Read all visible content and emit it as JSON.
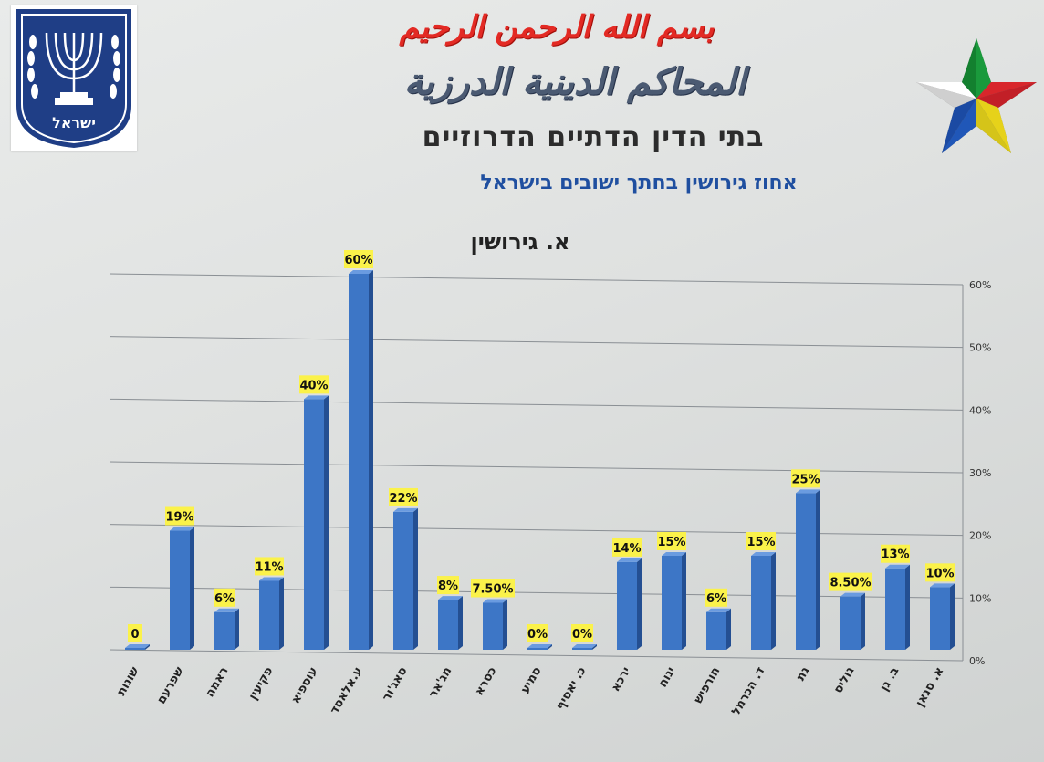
{
  "header": {
    "basmala": "بسم الله الرحمن الرحيم",
    "arabic_courts": "المحاكم الدينية الدرزية",
    "hebrew_courts": "בתי הדין הדתיים הדרוזיים",
    "subtitle": "אחוז גירושין בחתך ישובים בישראל",
    "emblem_text": "ישראל"
  },
  "chart_data": {
    "type": "bar",
    "title": "א. גירושין",
    "xlabel": "",
    "ylabel": "",
    "ylim": [
      0,
      60
    ],
    "yticks": [
      "0%",
      "10%",
      "20%",
      "30%",
      "40%",
      "50%",
      "60%"
    ],
    "categories": [
      "שונות",
      "שפרעם",
      "ראמה",
      "פקיעין",
      "עוספיא",
      "ע.אלאסד",
      "סאג'ור",
      "מג'אר",
      "כסרא",
      "סמיע",
      "כ. יאסיף",
      "ירכא",
      "ינוח",
      "חורפיש",
      "ד. הכרמל",
      "גת",
      "גוליס",
      "ב. גן",
      "א. סנאן"
    ],
    "values": [
      0,
      19,
      6,
      11,
      40,
      60,
      22,
      8,
      7.5,
      0,
      0,
      14,
      15,
      6,
      15,
      25,
      8.5,
      13,
      10
    ],
    "data_labels": [
      "0",
      "19%",
      "6%",
      "11%",
      "40%",
      "60%",
      "22%",
      "8%",
      "7.50%",
      "0%",
      "0%",
      "14%",
      "15%",
      "6%",
      "15%",
      "25%",
      "8.50%",
      "13%",
      "10%"
    ],
    "grid": true,
    "bar_color": "#3d76c6",
    "label_bg": "#fbf24a"
  }
}
